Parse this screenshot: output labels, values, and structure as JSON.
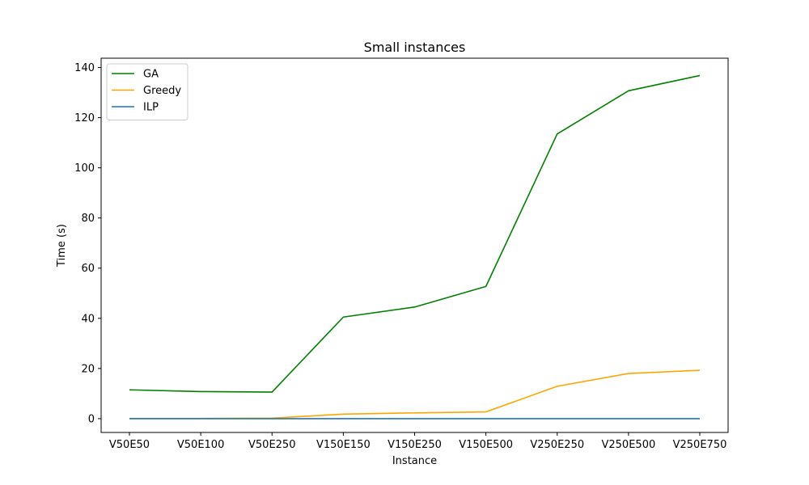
{
  "chart_data": {
    "type": "line",
    "title": "Small instances",
    "xlabel": "Instance",
    "ylabel": "Time (s)",
    "categories": [
      "V50E50",
      "V50E100",
      "V50E250",
      "V150E150",
      "V150E250",
      "V150E500",
      "V250E250",
      "V250E500",
      "V250E750"
    ],
    "ylim": [
      -5.5,
      143.7
    ],
    "yticks": [
      0,
      20,
      40,
      60,
      80,
      100,
      120,
      140
    ],
    "grid": false,
    "legend_position": "upper-left",
    "series": [
      {
        "name": "GA",
        "color": "#008000",
        "values": [
          11.5,
          10.8,
          10.6,
          40.5,
          44.5,
          52.7,
          113.5,
          130.7,
          136.8
        ]
      },
      {
        "name": "Greedy",
        "color": "#ffa500",
        "values": [
          0.1,
          0.1,
          0.2,
          1.8,
          2.3,
          2.7,
          12.9,
          18.0,
          19.3
        ]
      },
      {
        "name": "ILP",
        "color": "#1f77b4",
        "values": [
          0.0,
          0.0,
          0.0,
          0.0,
          0.0,
          0.0,
          0.0,
          0.0,
          0.0
        ]
      }
    ]
  }
}
